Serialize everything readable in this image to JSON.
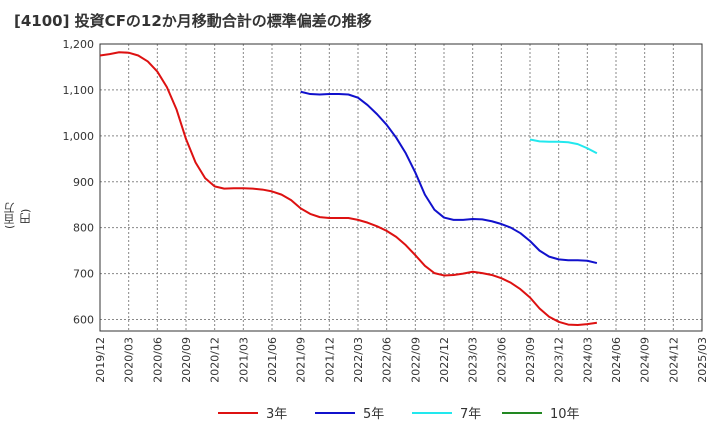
{
  "chart_data": {
    "type": "line",
    "title": "[4100]  投資CFの12か月移動合計の標準偏差の推移",
    "ylabel": "(百万円)",
    "xlabel": "",
    "ylim": [
      575,
      1200
    ],
    "yticks": [
      600,
      700,
      800,
      900,
      1000,
      1100,
      1200
    ],
    "ytick_labels": [
      "600",
      "700",
      "800",
      "900",
      "1,000",
      "1,100",
      "1,200"
    ],
    "xticks": [
      "2019/12",
      "2020/03",
      "2020/06",
      "2020/09",
      "2020/12",
      "2021/03",
      "2021/06",
      "2021/09",
      "2021/12",
      "2022/03",
      "2022/06",
      "2022/09",
      "2022/12",
      "2023/03",
      "2023/06",
      "2023/09",
      "2023/12",
      "2024/03",
      "2024/06",
      "2024/09",
      "2024/12",
      "2025/03"
    ],
    "grid": true,
    "legend_position": "bottom",
    "series": [
      {
        "name": "3年",
        "color": "#dd1111",
        "values": [
          1175,
          1178,
          1182,
          1181,
          1175,
          1162,
          1140,
          1106,
          1058,
          993,
          942,
          908,
          890,
          885,
          886,
          886,
          885,
          883,
          879,
          872,
          860,
          842,
          830,
          823,
          821,
          821,
          821,
          817,
          811,
          803,
          793,
          780,
          762,
          740,
          717,
          701,
          696,
          697,
          700,
          704,
          701,
          697,
          690,
          680,
          666,
          648,
          624,
          606,
          595,
          589,
          588,
          590,
          593
        ]
      },
      {
        "name": "5年",
        "color": "#1111cc",
        "values": [
          null,
          null,
          null,
          null,
          null,
          null,
          null,
          null,
          null,
          null,
          null,
          null,
          null,
          null,
          null,
          null,
          null,
          null,
          null,
          null,
          null,
          1096,
          1091,
          1090,
          1091,
          1091,
          1090,
          1083,
          1067,
          1047,
          1024,
          996,
          962,
          920,
          872,
          839,
          822,
          817,
          817,
          819,
          818,
          814,
          808,
          800,
          788,
          771,
          750,
          737,
          731,
          729,
          729,
          728,
          723
        ]
      },
      {
        "name": "7年",
        "color": "#22e8ee",
        "values": [
          null,
          null,
          null,
          null,
          null,
          null,
          null,
          null,
          null,
          null,
          null,
          null,
          null,
          null,
          null,
          null,
          null,
          null,
          null,
          null,
          null,
          null,
          null,
          null,
          null,
          null,
          null,
          null,
          null,
          null,
          null,
          null,
          null,
          null,
          null,
          null,
          null,
          null,
          null,
          null,
          null,
          null,
          null,
          null,
          null,
          992,
          988,
          987,
          987,
          986,
          982,
          973,
          962
        ]
      },
      {
        "name": "10年",
        "color": "#228822",
        "values": []
      }
    ]
  }
}
